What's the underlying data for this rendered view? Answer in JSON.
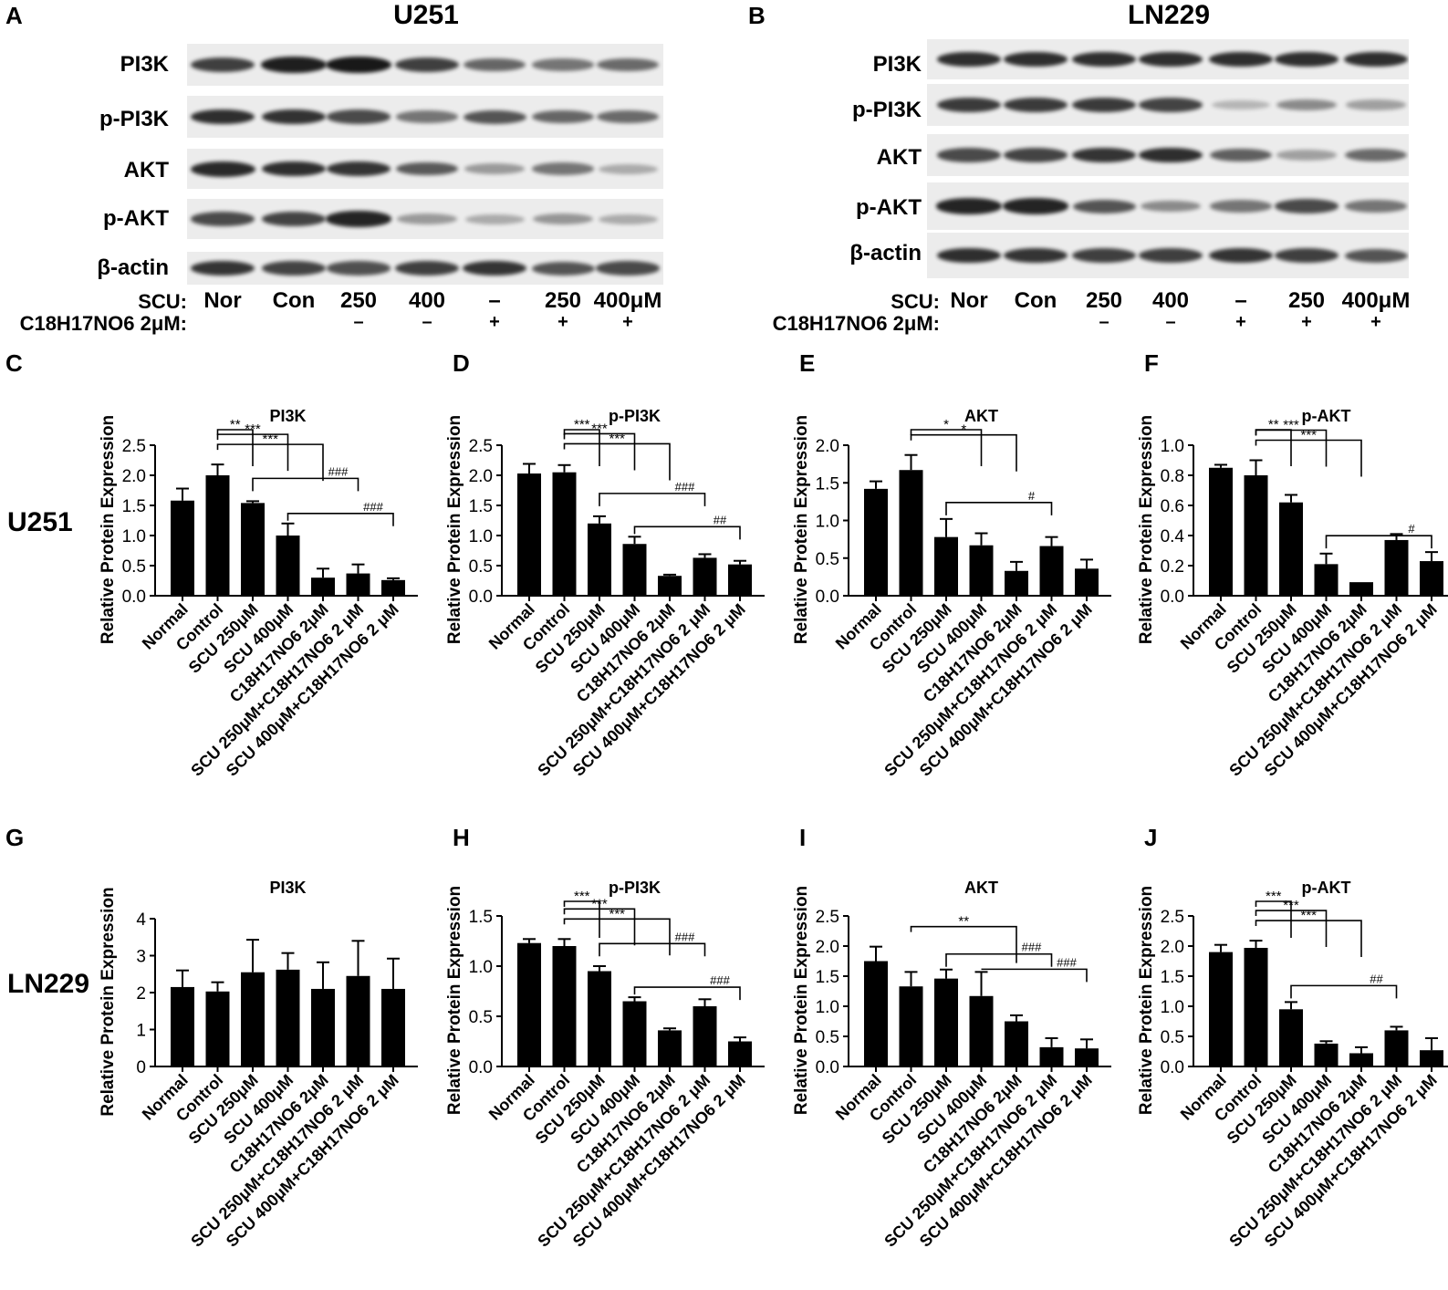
{
  "panel_letters": [
    "A",
    "B",
    "C",
    "D",
    "E",
    "F",
    "G",
    "H",
    "I",
    "J"
  ],
  "row_titles": {
    "u251": "U251",
    "ln229": "LN229"
  },
  "blots": [
    {
      "title": "U251",
      "row_labels": [
        "PI3K",
        "p-PI3K",
        "AKT",
        "p-AKT",
        "β-actin"
      ],
      "scu_label": "SCU:",
      "scu_lanes": [
        "Nor",
        "Con",
        "250",
        "400",
        "–",
        "250",
        "400μM"
      ],
      "cond_label": "C18H17NO6 2μM:",
      "cond_lanes": [
        "",
        "",
        "–",
        "–",
        "+",
        "+",
        "+"
      ],
      "intensity": [
        [
          0.8,
          0.95,
          0.98,
          0.8,
          0.62,
          0.55,
          0.6
        ],
        [
          0.88,
          0.86,
          0.75,
          0.55,
          0.7,
          0.62,
          0.6
        ],
        [
          0.9,
          0.88,
          0.85,
          0.68,
          0.38,
          0.55,
          0.3
        ],
        [
          0.75,
          0.78,
          0.92,
          0.38,
          0.3,
          0.4,
          0.3
        ],
        [
          0.85,
          0.78,
          0.72,
          0.8,
          0.85,
          0.7,
          0.75
        ]
      ]
    },
    {
      "title": "LN229",
      "row_labels": [
        "PI3K",
        "p-PI3K",
        "AKT",
        "p-AKT",
        "β-actin"
      ],
      "scu_label": "SCU:",
      "scu_lanes": [
        "Nor",
        "Con",
        "250",
        "400",
        "–",
        "250",
        "400μM"
      ],
      "cond_label": "C18H17NO6 2μM:",
      "cond_lanes": [
        "",
        "",
        "–",
        "–",
        "+",
        "+",
        "+"
      ],
      "intensity": [
        [
          0.88,
          0.88,
          0.88,
          0.88,
          0.88,
          0.88,
          0.88
        ],
        [
          0.82,
          0.82,
          0.82,
          0.78,
          0.25,
          0.45,
          0.35
        ],
        [
          0.75,
          0.78,
          0.85,
          0.88,
          0.65,
          0.35,
          0.6
        ],
        [
          0.92,
          0.92,
          0.7,
          0.45,
          0.55,
          0.75,
          0.55
        ],
        [
          0.88,
          0.85,
          0.8,
          0.8,
          0.85,
          0.8,
          0.7
        ]
      ]
    }
  ],
  "colors": {
    "bar": "#000000",
    "background": "#ffffff",
    "blot_bg": "#ececec",
    "band": "#141414"
  },
  "chart_data": [
    {
      "panel": "C",
      "type": "bar",
      "title": "PI3K",
      "ylabel": "Relative Protein Expression",
      "categories": [
        "Normal",
        "Control",
        "SCU 250μM",
        "SCU 400μM",
        "C18H17NO6 2μM",
        "SCU 250μM+C18H17NO6 2 μM",
        "SCU 400μM+C18H17NO6 2 μM"
      ],
      "values": [
        1.58,
        2.0,
        1.54,
        1.0,
        0.3,
        0.37,
        0.26
      ],
      "errors": [
        0.2,
        0.18,
        0.03,
        0.2,
        0.15,
        0.15,
        0.03
      ],
      "ylim": [
        0,
        2.5
      ],
      "yticks": [
        "0.0",
        "0.5",
        "1.0",
        "1.5",
        "2.0",
        "2.5"
      ],
      "annotations": [
        {
          "from": 1,
          "to": 2,
          "label": "**"
        },
        {
          "from": 1,
          "to": 3,
          "label": "***"
        },
        {
          "from": 1,
          "to": 4,
          "label": "***"
        },
        {
          "from": 2,
          "to": 5,
          "label": "###"
        },
        {
          "from": 3,
          "to": 6,
          "label": "###"
        }
      ]
    },
    {
      "panel": "D",
      "type": "bar",
      "title": "p-PI3K",
      "ylabel": "Relative Protein Expression",
      "categories": [
        "Normal",
        "Control",
        "SCU 250μM",
        "SCU 400μM",
        "C18H17NO6 2μM",
        "SCU 250μM+C18H17NO6 2 μM",
        "SCU 400μM+C18H17NO6 2 μM"
      ],
      "values": [
        2.03,
        2.05,
        1.2,
        0.86,
        0.33,
        0.63,
        0.52
      ],
      "errors": [
        0.16,
        0.12,
        0.12,
        0.12,
        0.02,
        0.06,
        0.06
      ],
      "ylim": [
        0,
        2.5
      ],
      "yticks": [
        "0.0",
        "0.5",
        "1.0",
        "1.5",
        "2.0",
        "2.5"
      ],
      "annotations": [
        {
          "from": 1,
          "to": 2,
          "label": "***"
        },
        {
          "from": 1,
          "to": 3,
          "label": "***"
        },
        {
          "from": 1,
          "to": 4,
          "label": "***"
        },
        {
          "from": 2,
          "to": 5,
          "label": "###"
        },
        {
          "from": 3,
          "to": 6,
          "label": "##"
        }
      ]
    },
    {
      "panel": "E",
      "type": "bar",
      "title": "AKT",
      "ylabel": "Relative Protein Expression",
      "categories": [
        "Normal",
        "Control",
        "SCU 250μM",
        "SCU 400μM",
        "C18H17NO6 2μM",
        "SCU 250μM+C18H17NO6 2 μM",
        "SCU 400μM+C18H17NO6 2 μM"
      ],
      "values": [
        1.42,
        1.67,
        0.78,
        0.67,
        0.33,
        0.66,
        0.36
      ],
      "errors": [
        0.1,
        0.2,
        0.24,
        0.16,
        0.12,
        0.12,
        0.12
      ],
      "ylim": [
        0,
        2.0
      ],
      "yticks": [
        "0.0",
        "0.5",
        "1.0",
        "1.5",
        "2.0"
      ],
      "annotations": [
        {
          "from": 1,
          "to": 3,
          "label": "*"
        },
        {
          "from": 1,
          "to": 4,
          "label": "*"
        },
        {
          "from": 2,
          "to": 5,
          "label": "#"
        }
      ]
    },
    {
      "panel": "F",
      "type": "bar",
      "title": "p-AKT",
      "ylabel": "Relative Protein Expression",
      "categories": [
        "Normal",
        "Control",
        "SCU 250μM",
        "SCU 400μM",
        "C18H17NO6 2μM",
        "SCU 250μM+C18H17NO6 2 μM",
        "SCU 400μM+C18H17NO6 2 μM"
      ],
      "values": [
        0.85,
        0.8,
        0.62,
        0.21,
        0.09,
        0.37,
        0.23
      ],
      "errors": [
        0.02,
        0.1,
        0.05,
        0.07,
        0.0,
        0.04,
        0.06
      ],
      "ylim": [
        0,
        1.0
      ],
      "yticks": [
        "0.0",
        "0.2",
        "0.4",
        "0.6",
        "0.8",
        "1.0"
      ],
      "annotations": [
        {
          "from": 1,
          "to": 2,
          "label": "**"
        },
        {
          "from": 1,
          "to": 3,
          "label": "***"
        },
        {
          "from": 1,
          "to": 4,
          "label": "***"
        },
        {
          "from": 3,
          "to": 6,
          "label": "#"
        }
      ]
    },
    {
      "panel": "G",
      "type": "bar",
      "title": "PI3K",
      "ylabel": "Relative Protein Expression",
      "categories": [
        "Normal",
        "Control",
        "SCU 250μM",
        "SCU 400μM",
        "C18H17NO6 2μM",
        "SCU 250μM+C18H17NO6 2 μM",
        "SCU 400μM+C18H17NO6 2 μM"
      ],
      "values": [
        2.15,
        2.03,
        2.55,
        2.62,
        2.1,
        2.45,
        2.1
      ],
      "errors": [
        0.45,
        0.25,
        0.88,
        0.45,
        0.72,
        0.95,
        0.82
      ],
      "ylim": [
        0,
        4
      ],
      "yticks": [
        "0",
        "1",
        "2",
        "3",
        "4"
      ],
      "annotations": []
    },
    {
      "panel": "H",
      "type": "bar",
      "title": "p-PI3K",
      "ylabel": "Relative Protein Expression",
      "categories": [
        "Normal",
        "Control",
        "SCU 250μM",
        "SCU 400μM",
        "C18H17NO6 2μM",
        "SCU 250μM+C18H17NO6 2 μM",
        "SCU 400μM+C18H17NO6 2 μM"
      ],
      "values": [
        1.23,
        1.2,
        0.95,
        0.65,
        0.36,
        0.6,
        0.25
      ],
      "errors": [
        0.04,
        0.07,
        0.05,
        0.04,
        0.02,
        0.07,
        0.04
      ],
      "ylim": [
        0,
        1.5
      ],
      "yticks": [
        "0.0",
        "0.5",
        "1.0",
        "1.5"
      ],
      "annotations": [
        {
          "from": 1,
          "to": 2,
          "label": "***"
        },
        {
          "from": 1,
          "to": 3,
          "label": "***"
        },
        {
          "from": 1,
          "to": 4,
          "label": "***"
        },
        {
          "from": 2,
          "to": 5,
          "label": "###"
        },
        {
          "from": 3,
          "to": 6,
          "label": "###"
        }
      ]
    },
    {
      "panel": "I",
      "type": "bar",
      "title": "AKT",
      "ylabel": "Relative Protein Expression",
      "categories": [
        "Normal",
        "Control",
        "SCU 250μM",
        "SCU 400μM",
        "C18H17NO6 2μM",
        "SCU 250μM+C18H17NO6 2 μM",
        "SCU 400μM+C18H17NO6 2 μM"
      ],
      "values": [
        1.75,
        1.33,
        1.46,
        1.17,
        0.75,
        0.32,
        0.3
      ],
      "errors": [
        0.24,
        0.24,
        0.15,
        0.4,
        0.1,
        0.15,
        0.15
      ],
      "ylim": [
        0,
        2.5
      ],
      "yticks": [
        "0.0",
        "0.5",
        "1.0",
        "1.5",
        "2.0",
        "2.5"
      ],
      "annotations": [
        {
          "from": 1,
          "to": 4,
          "label": "**"
        },
        {
          "from": 2,
          "to": 5,
          "label": "###"
        },
        {
          "from": 3,
          "to": 6,
          "label": "###"
        }
      ]
    },
    {
      "panel": "J",
      "type": "bar",
      "title": "p-AKT",
      "ylabel": "Relative Protein Expression",
      "categories": [
        "Normal",
        "Control",
        "SCU 250μM",
        "SCU 400μM",
        "C18H17NO6 2μM",
        "SCU 250μM+C18H17NO6 2 μM",
        "SCU 400μM+C18H17NO6 2 μM"
      ],
      "values": [
        1.9,
        1.97,
        0.95,
        0.38,
        0.22,
        0.6,
        0.27
      ],
      "errors": [
        0.12,
        0.12,
        0.12,
        0.04,
        0.1,
        0.06,
        0.2
      ],
      "ylim": [
        0,
        2.5
      ],
      "yticks": [
        "0.0",
        "0.5",
        "1.0",
        "1.5",
        "2.0",
        "2.5"
      ],
      "annotations": [
        {
          "from": 1,
          "to": 2,
          "label": "***"
        },
        {
          "from": 1,
          "to": 3,
          "label": "***"
        },
        {
          "from": 1,
          "to": 4,
          "label": "***"
        },
        {
          "from": 2,
          "to": 5,
          "label": "##"
        }
      ]
    }
  ]
}
